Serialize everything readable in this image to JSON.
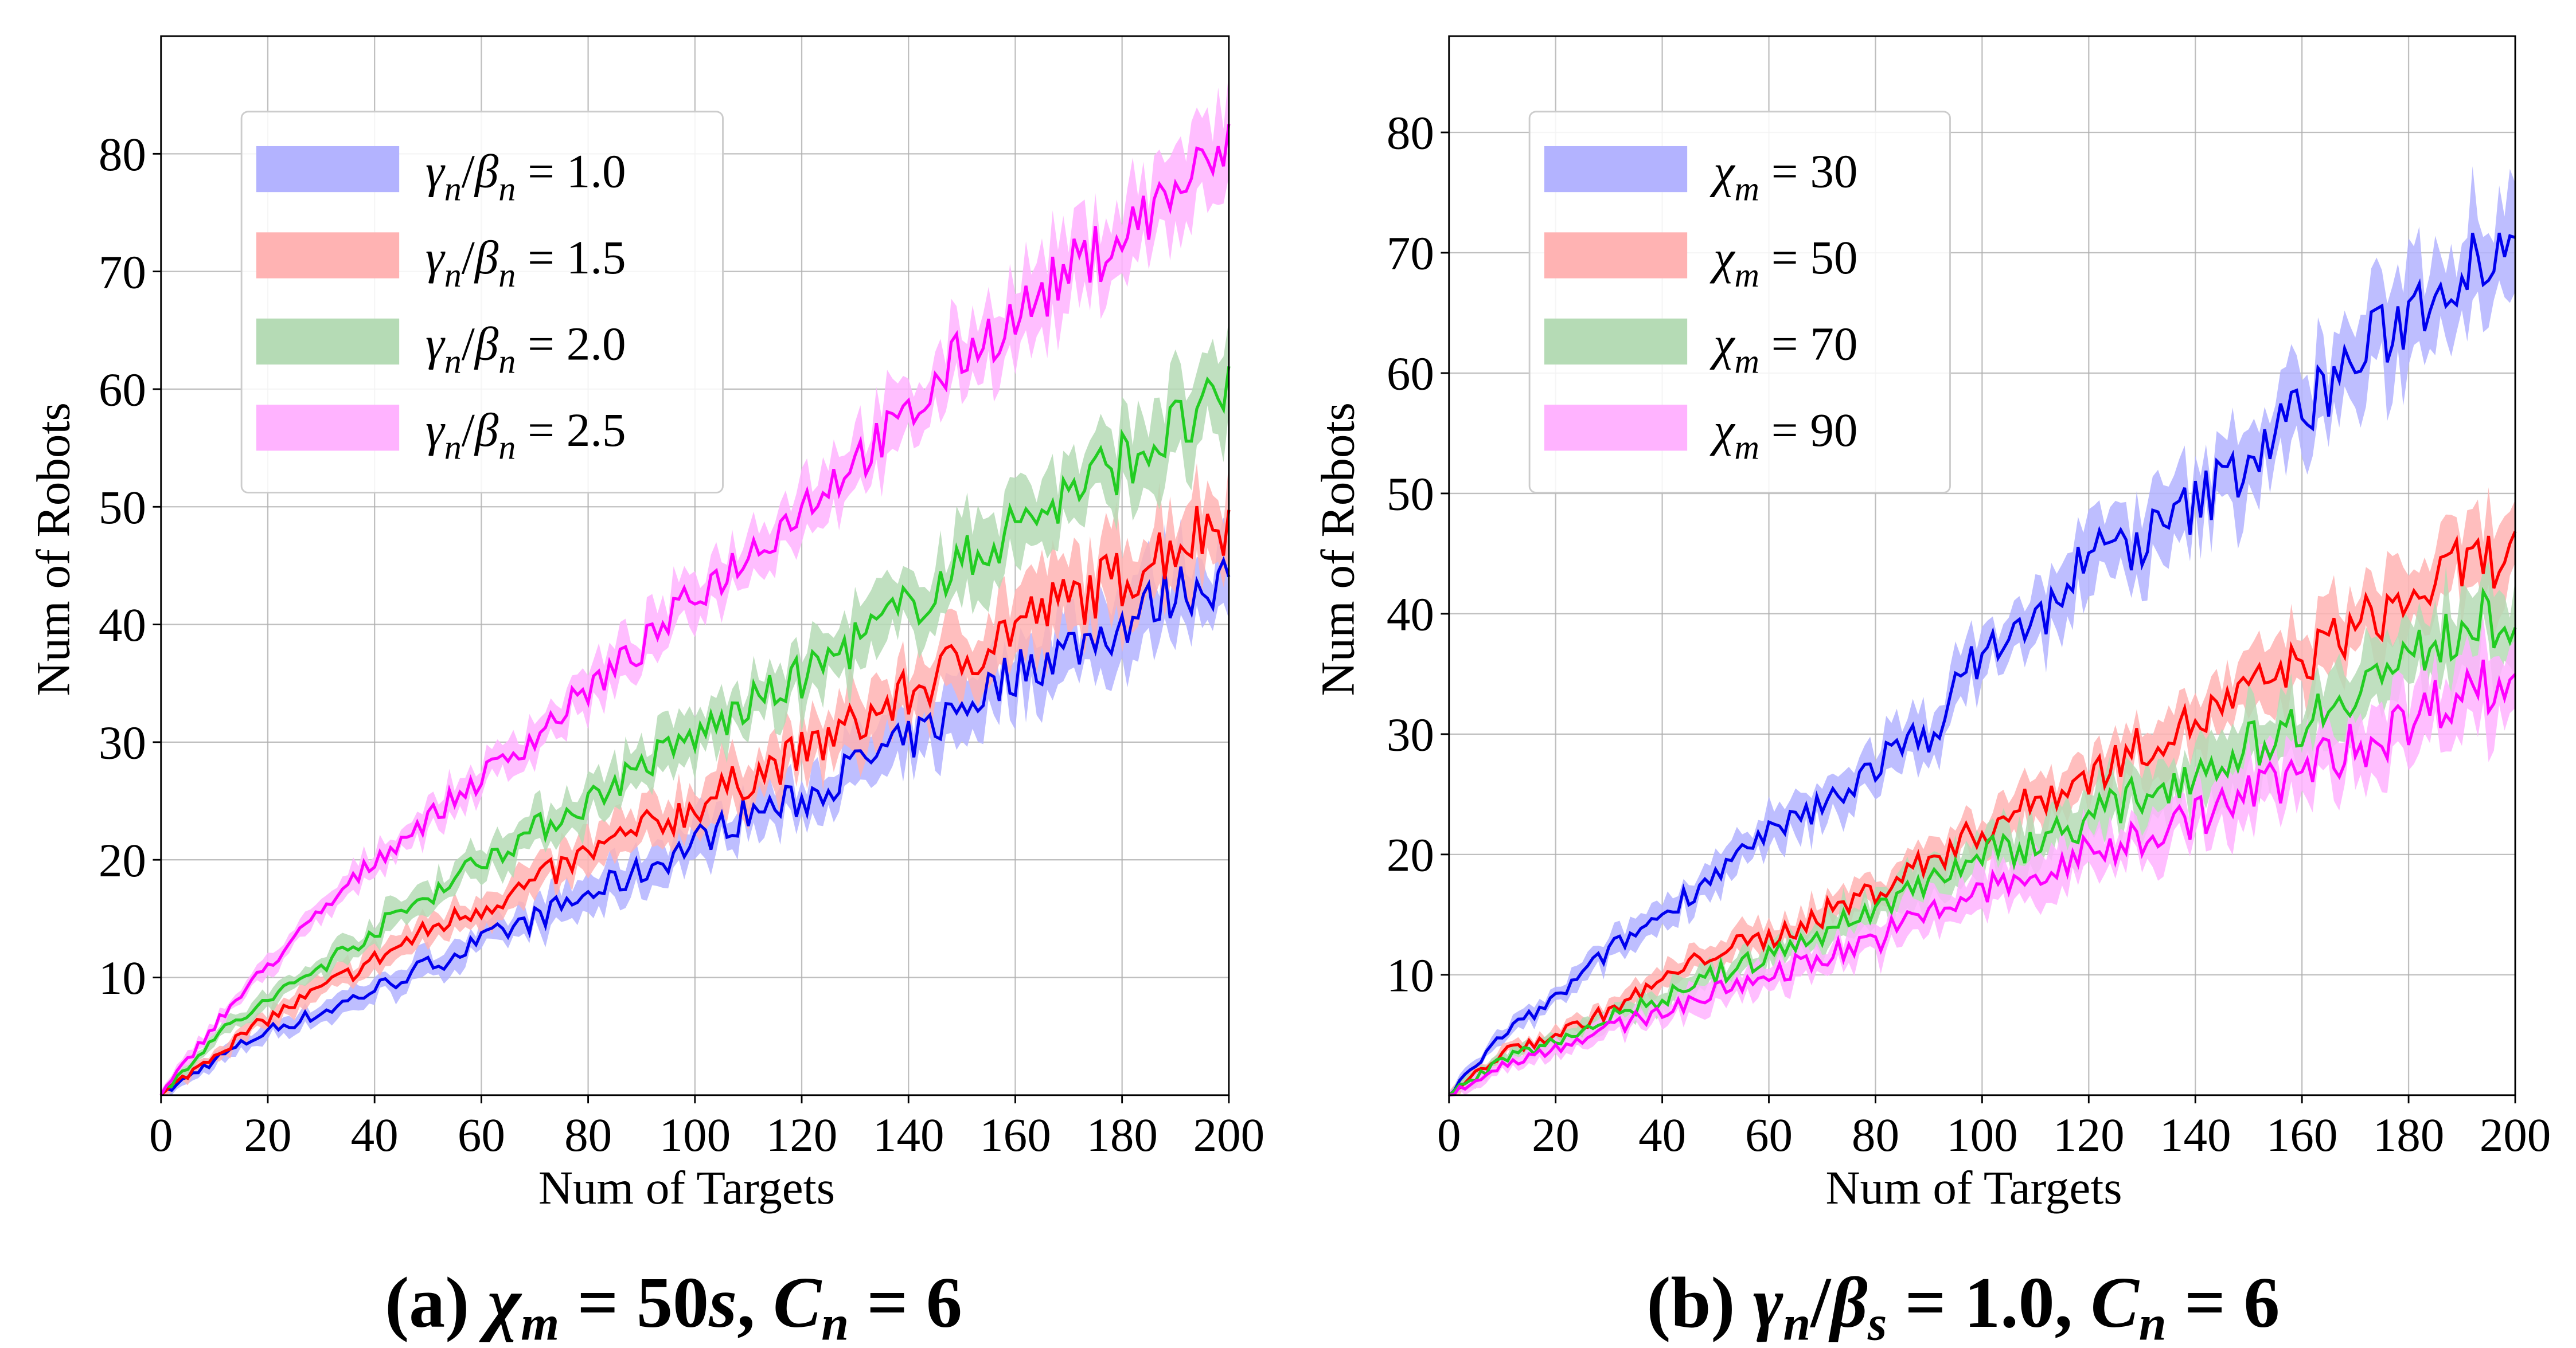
{
  "colors": {
    "blue": "#0000ee",
    "red": "#ff0000",
    "green": "#22cc22",
    "magenta": "#ff00ff",
    "blue_band": "#b3b3ff",
    "red_band": "#ffb3b3",
    "green_band": "#b5dbb5",
    "magenta_band": "#ffb3ff"
  },
  "chart_data": [
    {
      "id": "a",
      "type": "line",
      "caption_parts": [
        [
          "(a)",
          "b"
        ],
        [
          "  ",
          ""
        ],
        [
          "χ",
          "i"
        ],
        [
          "m",
          "sub"
        ],
        [
          " = 50",
          ""
        ],
        [
          "s",
          "i"
        ],
        [
          ", ",
          ""
        ],
        [
          "C",
          "i"
        ],
        [
          "n",
          "sub"
        ],
        [
          " = 6",
          ""
        ]
      ],
      "xlabel": "Num of  Targets",
      "ylabel": "Num of  Robots",
      "xlim": [
        0,
        200
      ],
      "ylim": [
        0,
        90
      ],
      "xticks": [
        0,
        20,
        40,
        60,
        80,
        100,
        120,
        140,
        160,
        180,
        200
      ],
      "yticks": [
        10,
        20,
        30,
        40,
        50,
        60,
        70,
        80
      ],
      "grid": true,
      "legend_position": "top-left",
      "x": [
        0,
        10,
        20,
        30,
        40,
        50,
        60,
        70,
        80,
        90,
        100,
        110,
        120,
        130,
        140,
        150,
        160,
        170,
        180,
        190,
        200
      ],
      "series": [
        {
          "name": "γn/βn = 1.0",
          "parts": [
            [
              "γ",
              "i"
            ],
            [
              "n",
              "sub"
            ],
            [
              "/",
              ""
            ],
            [
              "β",
              "i"
            ],
            [
              "n",
              "sub"
            ],
            [
              "  =  1.0",
              ""
            ]
          ],
          "color": "blue",
          "band": 2.5,
          "values": [
            0,
            3,
            5.5,
            7,
            9,
            11,
            13,
            15,
            17,
            19,
            21.5,
            24,
            25,
            28,
            30,
            33,
            36,
            38,
            40,
            43,
            44
          ]
        },
        {
          "name": "γn/βn = 1.5",
          "parts": [
            [
              "γ",
              "i"
            ],
            [
              "n",
              "sub"
            ],
            [
              "/",
              ""
            ],
            [
              "β",
              "i"
            ],
            [
              "n",
              "sub"
            ],
            [
              "  =  1.5",
              ""
            ]
          ],
          "color": "red",
          "band": 3,
          "values": [
            0,
            3.5,
            6.5,
            9,
            11.5,
            14,
            16,
            18,
            20.5,
            22.5,
            24.5,
            27,
            29,
            31.5,
            34,
            37,
            40,
            42,
            44,
            47,
            49
          ]
        },
        {
          "name": "γn/βn = 2.0",
          "parts": [
            [
              "γ",
              "i"
            ],
            [
              "n",
              "sub"
            ],
            [
              "/",
              ""
            ],
            [
              "β",
              "i"
            ],
            [
              "n",
              "sub"
            ],
            [
              "  =  2.0",
              ""
            ]
          ],
          "color": "green",
          "band": 3,
          "values": [
            0,
            5,
            8,
            11,
            14,
            17,
            20,
            22.5,
            25,
            28,
            30.5,
            33,
            35.5,
            38.5,
            41.5,
            45,
            48.5,
            51,
            54,
            56.5,
            59
          ]
        },
        {
          "name": "γn/βn = 2.5",
          "parts": [
            [
              "γ",
              "i"
            ],
            [
              "n",
              "sub"
            ],
            [
              "/",
              ""
            ],
            [
              "β",
              "i"
            ],
            [
              "n",
              "sub"
            ],
            [
              "  =  2.5",
              ""
            ]
          ],
          "color": "magenta",
          "band": 3,
          "values": [
            0,
            6,
            11,
            15.5,
            20,
            23.5,
            27,
            30.5,
            34.5,
            38,
            42.5,
            46,
            50,
            54,
            57.5,
            63,
            66,
            70,
            73,
            77,
            80
          ]
        }
      ]
    },
    {
      "id": "b",
      "type": "line",
      "caption_parts": [
        [
          "(b)",
          "b"
        ],
        [
          "  ",
          ""
        ],
        [
          "γ",
          "i"
        ],
        [
          "n",
          "sub"
        ],
        [
          "/",
          ""
        ],
        [
          "β",
          "i"
        ],
        [
          "s",
          "sub"
        ],
        [
          " = 1.0, ",
          ""
        ],
        [
          "C",
          "i"
        ],
        [
          "n",
          "sub"
        ],
        [
          " = 6",
          ""
        ]
      ],
      "xlabel": "Num of  Targets",
      "ylabel": "Num of  Robots",
      "xlim": [
        0,
        200
      ],
      "ylim": [
        0,
        88
      ],
      "xticks": [
        0,
        20,
        40,
        60,
        80,
        100,
        120,
        140,
        160,
        180,
        200
      ],
      "yticks": [
        10,
        20,
        30,
        40,
        50,
        60,
        70,
        80
      ],
      "grid": true,
      "legend_position": "top-left",
      "x": [
        0,
        10,
        20,
        30,
        40,
        50,
        60,
        70,
        80,
        90,
        100,
        110,
        120,
        130,
        140,
        150,
        160,
        170,
        180,
        190,
        200
      ],
      "series": [
        {
          "name": "χm = 30",
          "parts": [
            [
              "χ",
              "i"
            ],
            [
              "m",
              "sub"
            ],
            [
              "  =  30",
              ""
            ]
          ],
          "color": "blue",
          "band": 3.5,
          "values": [
            0,
            5,
            8,
            12,
            15,
            18.5,
            21.5,
            24,
            27.5,
            30,
            37,
            39,
            45,
            46,
            49,
            53,
            57,
            61,
            65,
            69,
            72
          ]
        },
        {
          "name": "χm = 50",
          "parts": [
            [
              "χ",
              "i"
            ],
            [
              "m",
              "sub"
            ],
            [
              "  =  50",
              ""
            ]
          ],
          "color": "red",
          "band": 2.5,
          "values": [
            0,
            3.5,
            5,
            7,
            9.5,
            12,
            13,
            15,
            17,
            19.5,
            22,
            24.5,
            26.5,
            29,
            31,
            33.5,
            36,
            39,
            41,
            44,
            45
          ]
        },
        {
          "name": "χm = 70",
          "parts": [
            [
              "χ",
              "i"
            ],
            [
              "m",
              "sub"
            ],
            [
              "  =  70",
              ""
            ]
          ],
          "color": "green",
          "band": 2.5,
          "values": [
            0,
            3,
            4.5,
            6.5,
            8,
            10,
            11.5,
            13.5,
            15.5,
            18,
            20,
            21,
            23,
            25,
            27,
            29,
            31,
            34,
            36,
            39,
            40
          ]
        },
        {
          "name": "χm = 90",
          "parts": [
            [
              "χ",
              "i"
            ],
            [
              "m",
              "sub"
            ],
            [
              "  =  90",
              ""
            ]
          ],
          "color": "magenta",
          "band": 2.5,
          "values": [
            0,
            2.5,
            4,
            5.5,
            7,
            8.5,
            10,
            11.5,
            13,
            15,
            17,
            18,
            20,
            21.5,
            23,
            25,
            27,
            29,
            31,
            34,
            34
          ]
        }
      ]
    }
  ]
}
